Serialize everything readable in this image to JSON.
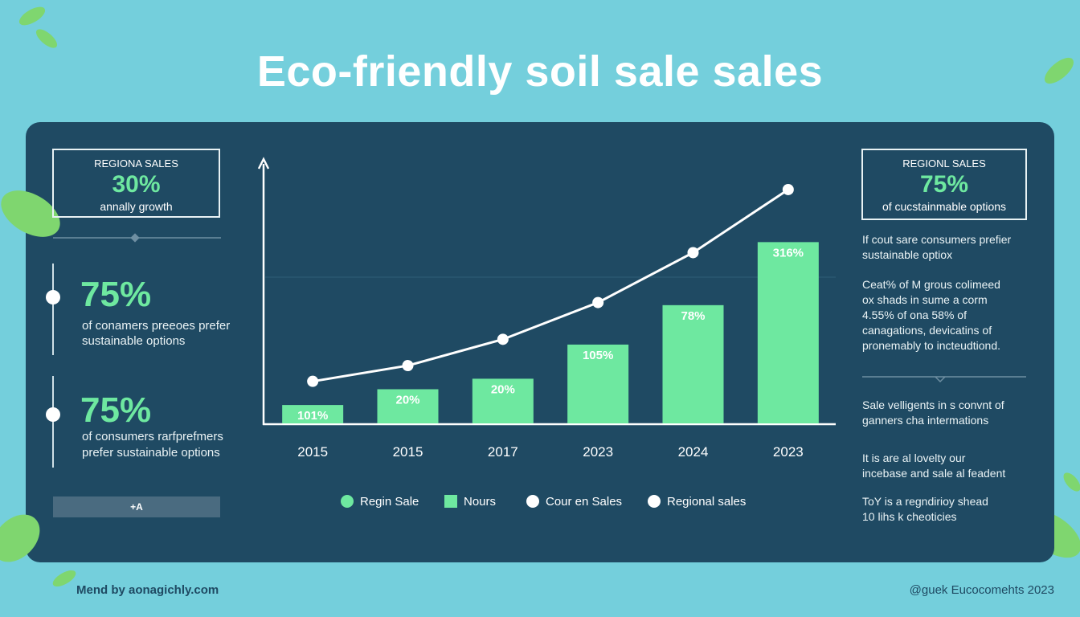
{
  "title": "Eco-friendly soil sale sales",
  "left_panel": {
    "box": {
      "heading": "REGIONA SALES",
      "value": "30%",
      "caption": "annally growth"
    },
    "stats": [
      {
        "value": "75%",
        "lines": [
          "of conamers preeoes prefer",
          "sustainable options"
        ]
      },
      {
        "value": "75%",
        "lines": [
          "of consumers rarfprefmers",
          "prefer sustainable options"
        ]
      }
    ],
    "button": "+A"
  },
  "chart_data": {
    "type": "bar",
    "categories": [
      "2015",
      "2015",
      "2017",
      "2023",
      "2024",
      "2023"
    ],
    "ylim": [
      0,
      100
    ],
    "series": [
      {
        "name": "Nours",
        "type": "bar",
        "color": "#6ee8a0",
        "values": [
          7,
          13,
          17,
          30,
          45,
          69
        ]
      },
      {
        "name": "Regional sales",
        "type": "line",
        "color": "#ffffff",
        "values": [
          16,
          22,
          32,
          46,
          65,
          89
        ]
      }
    ],
    "annotations": [
      "101%",
      "20%",
      "20%",
      "105%",
      "78%",
      "316%"
    ],
    "legend_extra": [
      {
        "name": "Regin Sale",
        "color": "#6ee8a0"
      },
      {
        "name": "Cour en Sales",
        "color": "#ffffff"
      }
    ]
  },
  "right_panel": {
    "box": {
      "heading": "REGIONL SALES",
      "value": "75%",
      "caption": "of cucstainmable options"
    },
    "paragraphs": [
      [
        "If cout sare consumers prefier",
        "sustainable optiox"
      ],
      [
        "Ceat% of M grous colimeed",
        "ox shads in sume a corm",
        "4.55% of ona 58% of",
        "canagations, devicatins of",
        "pronemably to incteudtiond."
      ],
      [
        "Sale velligents in s convnt of",
        "ganners cha intermations"
      ],
      [
        "It is are al lovelty our",
        "incebase and sale al feadent"
      ],
      [
        "ToY is a regndirioy shead",
        "10 lihs k cheoticies"
      ]
    ]
  },
  "footer": {
    "left": "Mend by aonagichly.com",
    "right": "@guek Eucocomehts 2023"
  }
}
